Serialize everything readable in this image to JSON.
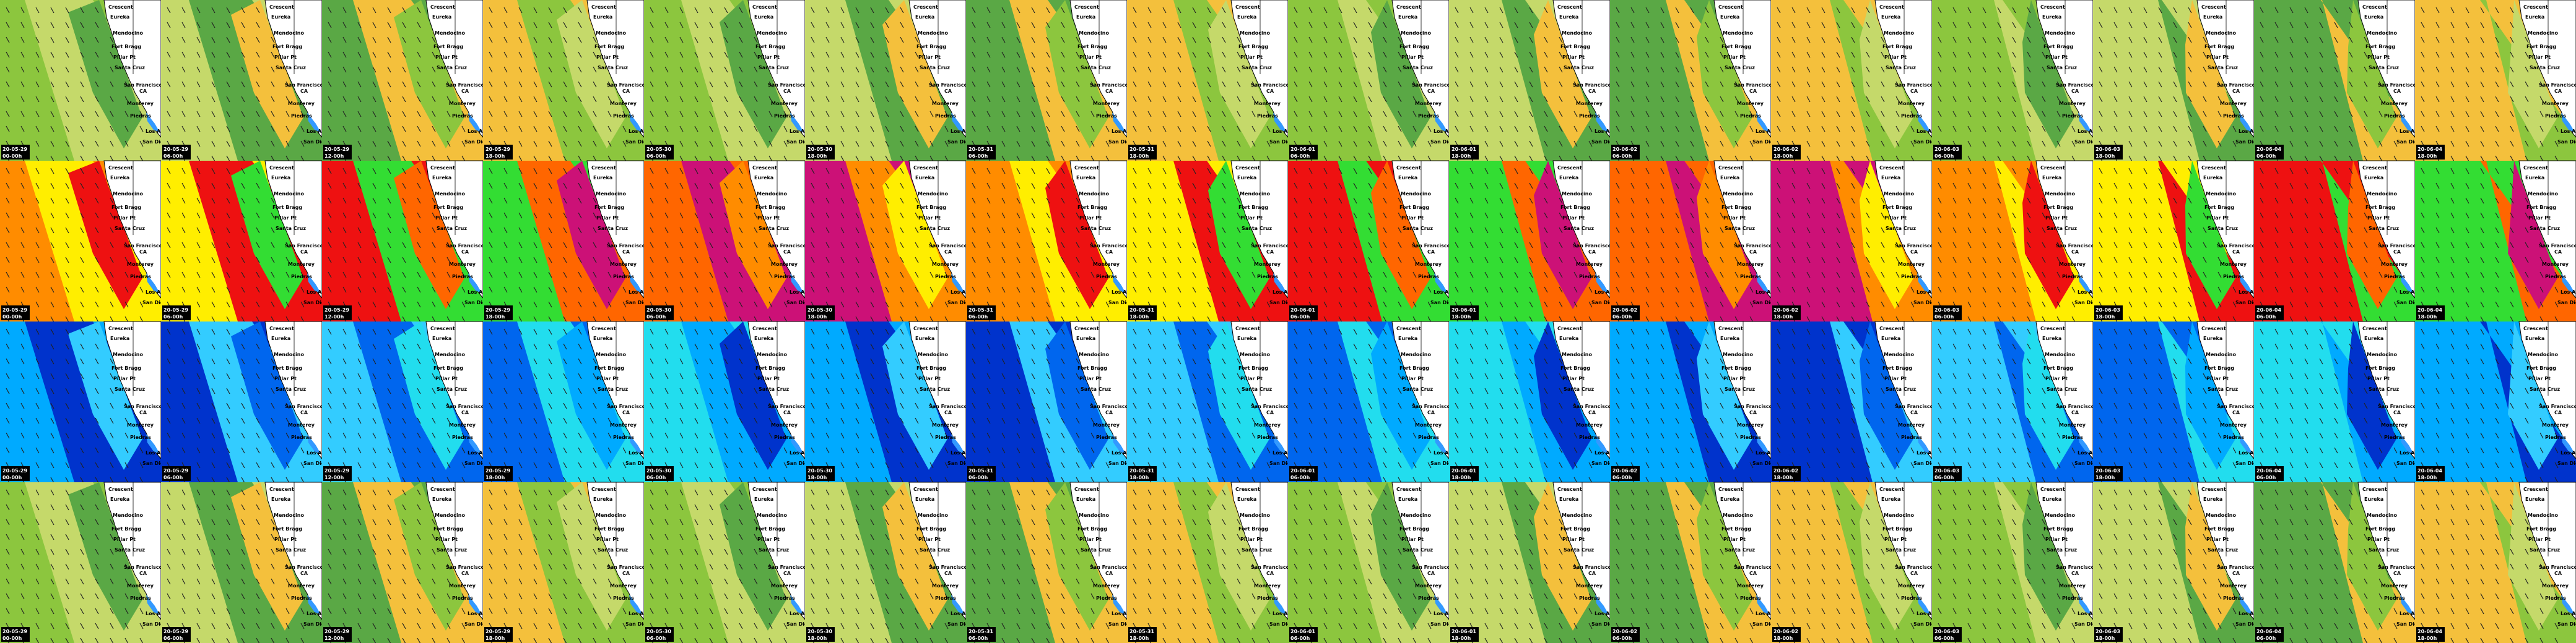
{
  "columns": [
    {
      "date": "20-05-29",
      "time": "00-00h"
    },
    {
      "date": "20-05-29",
      "time": "06-00h"
    },
    {
      "date": "20-05-29",
      "time": "12-00h"
    },
    {
      "date": "20-05-29",
      "time": "18-00h"
    },
    {
      "date": "20-05-30",
      "time": "06-00h"
    },
    {
      "date": "20-05-30",
      "time": "18-00h"
    },
    {
      "date": "20-05-31",
      "time": "06-00h"
    },
    {
      "date": "20-05-31",
      "time": "18-00h"
    },
    {
      "date": "20-06-01",
      "time": "06-00h"
    },
    {
      "date": "20-06-01",
      "time": "18-00h"
    },
    {
      "date": "20-06-02",
      "time": "06-00h"
    },
    {
      "date": "20-06-02",
      "time": "18-00h"
    },
    {
      "date": "20-06-03",
      "time": "06-00h"
    },
    {
      "date": "20-06-03",
      "time": "18-00h"
    },
    {
      "date": "20-06-04",
      "time": "06-00h"
    },
    {
      "date": "20-06-04",
      "time": "18-00h"
    }
  ],
  "places": [
    "Crescent",
    "Eureka",
    "Mendocino",
    "Fort Bragg",
    "Pillar Pt",
    "Santa Cruz",
    "San Francisco",
    "CA",
    "Monterey",
    "Piedras",
    "Los Angeles",
    "San Diego"
  ]
}
